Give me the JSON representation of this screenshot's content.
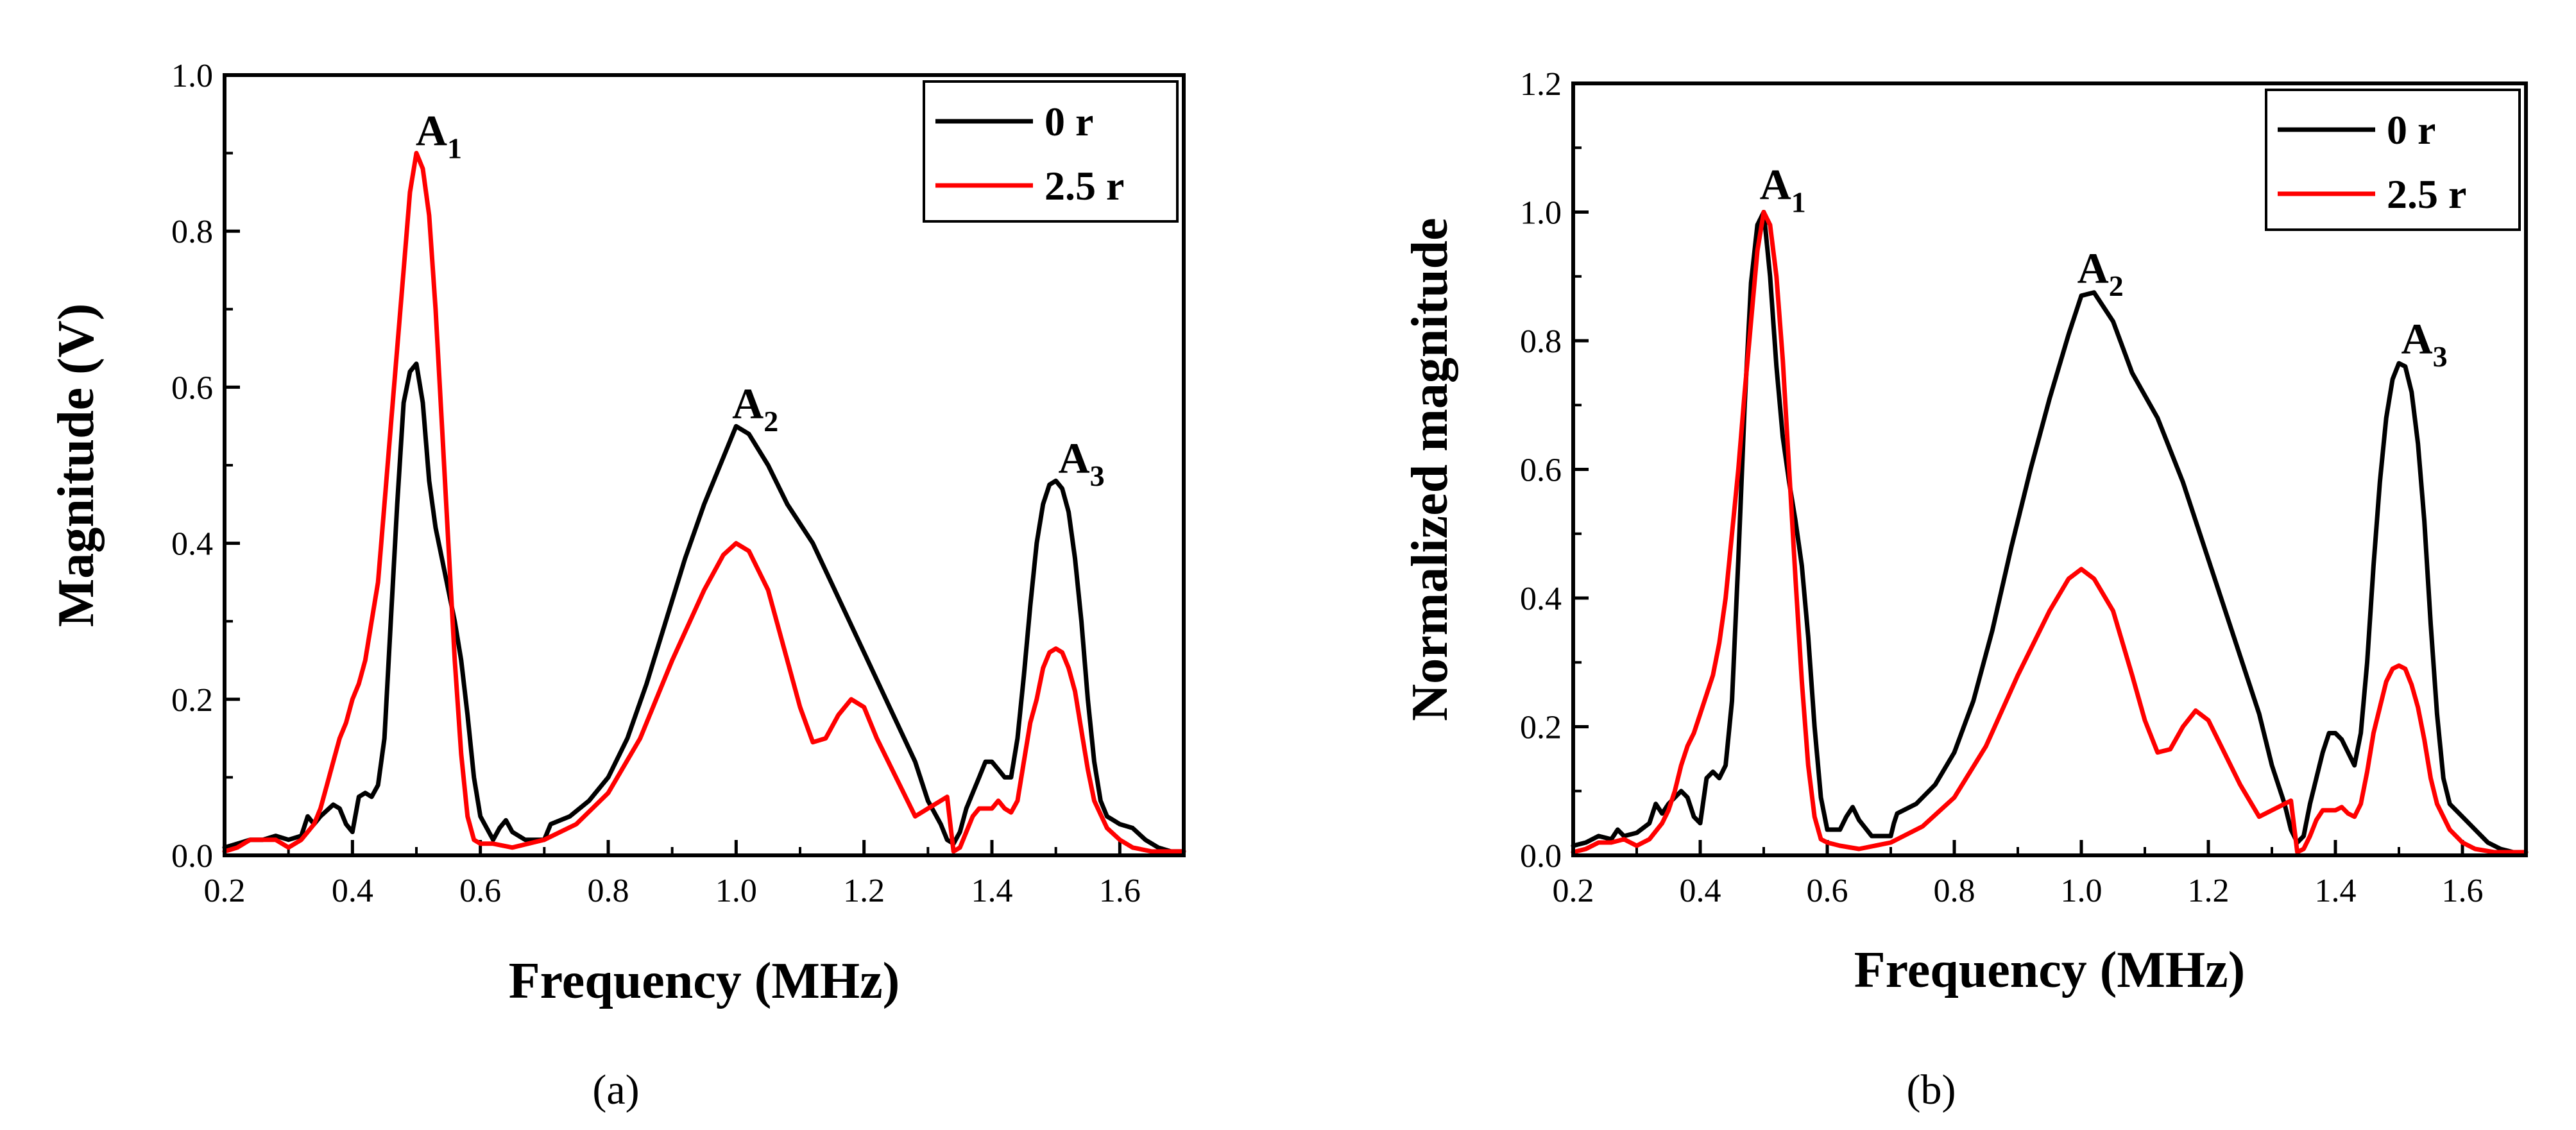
{
  "chart_data": [
    {
      "type": "line",
      "panel": "a",
      "caption": "(a)",
      "xlabel": "Frequency (MHz)",
      "ylabel": "Magnitude (V)",
      "xlim": [
        0.2,
        1.7
      ],
      "ylim": [
        0.0,
        1.0
      ],
      "xticks": [
        0.2,
        0.4,
        0.6,
        0.8,
        1.0,
        1.2,
        1.4,
        1.6
      ],
      "xtick_labels": [
        "0.2",
        "0.4",
        "0.6",
        "0.8",
        "1.0",
        "1.2",
        "1.4",
        "1.6"
      ],
      "yticks": [
        0.0,
        0.2,
        0.4,
        0.6,
        0.8,
        1.0
      ],
      "ytick_labels": [
        "0.0",
        "0.2",
        "0.4",
        "0.6",
        "0.8",
        "1.0"
      ],
      "legend": {
        "position": "top-right"
      },
      "annotations": [
        {
          "main": "A",
          "sub": "1",
          "x": 0.535,
          "y": 0.91
        },
        {
          "main": "A",
          "sub": "2",
          "x": 1.03,
          "y": 0.56
        },
        {
          "main": "A",
          "sub": "3",
          "x": 1.54,
          "y": 0.49
        }
      ],
      "series": [
        {
          "name": "0 r",
          "color": "#000000",
          "x": [
            0.2,
            0.22,
            0.24,
            0.26,
            0.28,
            0.3,
            0.32,
            0.33,
            0.34,
            0.35,
            0.37,
            0.38,
            0.39,
            0.4,
            0.41,
            0.42,
            0.43,
            0.44,
            0.45,
            0.46,
            0.47,
            0.48,
            0.49,
            0.5,
            0.51,
            0.52,
            0.53,
            0.54,
            0.55,
            0.56,
            0.57,
            0.58,
            0.59,
            0.6,
            0.62,
            0.63,
            0.64,
            0.65,
            0.67,
            0.7,
            0.705,
            0.71,
            0.74,
            0.77,
            0.8,
            0.83,
            0.86,
            0.89,
            0.92,
            0.95,
            0.98,
            1.0,
            1.02,
            1.05,
            1.08,
            1.12,
            1.16,
            1.2,
            1.24,
            1.28,
            1.3,
            1.32,
            1.33,
            1.34,
            1.35,
            1.36,
            1.37,
            1.38,
            1.39,
            1.4,
            1.41,
            1.42,
            1.43,
            1.44,
            1.45,
            1.46,
            1.47,
            1.48,
            1.49,
            1.5,
            1.51,
            1.52,
            1.53,
            1.54,
            1.55,
            1.56,
            1.57,
            1.58,
            1.59,
            1.6,
            1.62,
            1.64,
            1.66,
            1.68,
            1.7
          ],
          "values": [
            0.01,
            0.015,
            0.02,
            0.02,
            0.025,
            0.02,
            0.025,
            0.05,
            0.04,
            0.05,
            0.065,
            0.06,
            0.04,
            0.03,
            0.075,
            0.08,
            0.075,
            0.09,
            0.15,
            0.3,
            0.45,
            0.58,
            0.62,
            0.63,
            0.58,
            0.48,
            0.42,
            0.38,
            0.34,
            0.3,
            0.25,
            0.18,
            0.1,
            0.05,
            0.02,
            0.035,
            0.045,
            0.03,
            0.02,
            0.02,
            0.03,
            0.04,
            0.05,
            0.07,
            0.1,
            0.15,
            0.22,
            0.3,
            0.38,
            0.45,
            0.51,
            0.55,
            0.54,
            0.5,
            0.45,
            0.4,
            0.33,
            0.26,
            0.19,
            0.12,
            0.07,
            0.04,
            0.02,
            0.015,
            0.03,
            0.06,
            0.08,
            0.1,
            0.12,
            0.12,
            0.11,
            0.1,
            0.1,
            0.15,
            0.23,
            0.32,
            0.4,
            0.45,
            0.475,
            0.48,
            0.47,
            0.44,
            0.38,
            0.3,
            0.2,
            0.12,
            0.07,
            0.05,
            0.045,
            0.04,
            0.035,
            0.02,
            0.01,
            0.005,
            0.005
          ]
        },
        {
          "name": "2.5 r",
          "color": "#ff0000",
          "x": [
            0.2,
            0.22,
            0.24,
            0.26,
            0.28,
            0.3,
            0.32,
            0.34,
            0.35,
            0.36,
            0.37,
            0.38,
            0.39,
            0.4,
            0.41,
            0.42,
            0.43,
            0.44,
            0.45,
            0.46,
            0.47,
            0.48,
            0.49,
            0.5,
            0.51,
            0.52,
            0.53,
            0.54,
            0.55,
            0.56,
            0.57,
            0.58,
            0.59,
            0.6,
            0.62,
            0.65,
            0.7,
            0.75,
            0.8,
            0.85,
            0.9,
            0.95,
            0.98,
            1.0,
            1.02,
            1.05,
            1.08,
            1.1,
            1.12,
            1.14,
            1.16,
            1.18,
            1.2,
            1.22,
            1.25,
            1.28,
            1.3,
            1.32,
            1.33,
            1.34,
            1.35,
            1.36,
            1.37,
            1.38,
            1.39,
            1.4,
            1.41,
            1.42,
            1.43,
            1.44,
            1.45,
            1.46,
            1.47,
            1.48,
            1.49,
            1.5,
            1.51,
            1.52,
            1.53,
            1.54,
            1.55,
            1.56,
            1.58,
            1.6,
            1.62,
            1.65,
            1.7
          ],
          "values": [
            0.005,
            0.01,
            0.02,
            0.02,
            0.02,
            0.01,
            0.02,
            0.04,
            0.06,
            0.09,
            0.12,
            0.15,
            0.17,
            0.2,
            0.22,
            0.25,
            0.3,
            0.35,
            0.45,
            0.55,
            0.65,
            0.75,
            0.85,
            0.9,
            0.88,
            0.82,
            0.7,
            0.55,
            0.4,
            0.25,
            0.13,
            0.05,
            0.02,
            0.015,
            0.015,
            0.01,
            0.02,
            0.04,
            0.08,
            0.15,
            0.25,
            0.34,
            0.385,
            0.4,
            0.39,
            0.34,
            0.25,
            0.19,
            0.145,
            0.15,
            0.18,
            0.2,
            0.19,
            0.15,
            0.1,
            0.05,
            0.06,
            0.07,
            0.075,
            0.005,
            0.01,
            0.03,
            0.05,
            0.06,
            0.06,
            0.06,
            0.07,
            0.06,
            0.055,
            0.07,
            0.12,
            0.17,
            0.2,
            0.24,
            0.26,
            0.265,
            0.26,
            0.24,
            0.21,
            0.16,
            0.11,
            0.07,
            0.035,
            0.02,
            0.01,
            0.005,
            0.005
          ]
        }
      ]
    },
    {
      "type": "line",
      "panel": "b",
      "caption": "(b)",
      "xlabel": "Frequency (MHz)",
      "ylabel": "Normalized magnitude",
      "xlim": [
        0.2,
        1.7
      ],
      "ylim": [
        0.0,
        1.2
      ],
      "xticks": [
        0.2,
        0.4,
        0.6,
        0.8,
        1.0,
        1.2,
        1.4,
        1.6
      ],
      "xtick_labels": [
        "0.2",
        "0.4",
        "0.6",
        "0.8",
        "1.0",
        "1.2",
        "1.4",
        "1.6"
      ],
      "yticks": [
        0.0,
        0.2,
        0.4,
        0.6,
        0.8,
        1.0,
        1.2
      ],
      "ytick_labels": [
        "0.0",
        "0.2",
        "0.4",
        "0.6",
        "0.8",
        "1.0",
        "1.2"
      ],
      "legend": {
        "position": "top-right"
      },
      "annotations": [
        {
          "main": "A",
          "sub": "1",
          "x": 0.53,
          "y": 1.02
        },
        {
          "main": "A",
          "sub": "2",
          "x": 1.03,
          "y": 0.89
        },
        {
          "main": "A",
          "sub": "3",
          "x": 1.54,
          "y": 0.78
        }
      ],
      "series": [
        {
          "name": "0 r",
          "color": "#000000",
          "x": [
            0.2,
            0.22,
            0.24,
            0.26,
            0.27,
            0.28,
            0.3,
            0.32,
            0.33,
            0.34,
            0.35,
            0.37,
            0.38,
            0.39,
            0.4,
            0.41,
            0.42,
            0.43,
            0.44,
            0.45,
            0.46,
            0.47,
            0.48,
            0.49,
            0.5,
            0.51,
            0.52,
            0.53,
            0.54,
            0.55,
            0.56,
            0.57,
            0.58,
            0.59,
            0.6,
            0.62,
            0.63,
            0.64,
            0.65,
            0.67,
            0.7,
            0.705,
            0.71,
            0.74,
            0.77,
            0.8,
            0.83,
            0.86,
            0.89,
            0.92,
            0.95,
            0.98,
            1.0,
            1.02,
            1.05,
            1.08,
            1.12,
            1.16,
            1.2,
            1.24,
            1.28,
            1.3,
            1.32,
            1.33,
            1.34,
            1.35,
            1.36,
            1.37,
            1.38,
            1.39,
            1.4,
            1.41,
            1.42,
            1.43,
            1.44,
            1.45,
            1.46,
            1.47,
            1.48,
            1.49,
            1.5,
            1.51,
            1.52,
            1.53,
            1.54,
            1.55,
            1.56,
            1.57,
            1.58,
            1.59,
            1.6,
            1.62,
            1.64,
            1.66,
            1.68,
            1.7
          ],
          "values": [
            0.015,
            0.02,
            0.03,
            0.025,
            0.04,
            0.03,
            0.035,
            0.05,
            0.08,
            0.065,
            0.08,
            0.1,
            0.09,
            0.06,
            0.05,
            0.12,
            0.13,
            0.12,
            0.14,
            0.24,
            0.46,
            0.7,
            0.89,
            0.98,
            1.0,
            0.9,
            0.76,
            0.65,
            0.58,
            0.52,
            0.45,
            0.34,
            0.2,
            0.09,
            0.04,
            0.04,
            0.06,
            0.075,
            0.055,
            0.03,
            0.03,
            0.05,
            0.065,
            0.08,
            0.11,
            0.16,
            0.24,
            0.35,
            0.48,
            0.6,
            0.71,
            0.81,
            0.87,
            0.875,
            0.83,
            0.75,
            0.68,
            0.58,
            0.46,
            0.34,
            0.22,
            0.14,
            0.08,
            0.04,
            0.02,
            0.03,
            0.08,
            0.12,
            0.16,
            0.19,
            0.19,
            0.18,
            0.16,
            0.14,
            0.19,
            0.3,
            0.45,
            0.58,
            0.68,
            0.74,
            0.765,
            0.76,
            0.72,
            0.64,
            0.52,
            0.36,
            0.22,
            0.12,
            0.08,
            0.07,
            0.06,
            0.04,
            0.02,
            0.01,
            0.005,
            0.005
          ]
        },
        {
          "name": "2.5 r",
          "color": "#ff0000",
          "x": [
            0.2,
            0.22,
            0.24,
            0.26,
            0.28,
            0.3,
            0.32,
            0.34,
            0.35,
            0.36,
            0.37,
            0.38,
            0.39,
            0.4,
            0.41,
            0.42,
            0.43,
            0.44,
            0.45,
            0.46,
            0.47,
            0.48,
            0.49,
            0.5,
            0.51,
            0.52,
            0.53,
            0.54,
            0.55,
            0.56,
            0.57,
            0.58,
            0.59,
            0.6,
            0.62,
            0.65,
            0.7,
            0.75,
            0.8,
            0.85,
            0.9,
            0.95,
            0.98,
            1.0,
            1.02,
            1.05,
            1.08,
            1.1,
            1.12,
            1.14,
            1.16,
            1.18,
            1.2,
            1.22,
            1.25,
            1.28,
            1.3,
            1.32,
            1.33,
            1.34,
            1.35,
            1.36,
            1.37,
            1.38,
            1.39,
            1.4,
            1.41,
            1.42,
            1.43,
            1.44,
            1.45,
            1.46,
            1.47,
            1.48,
            1.49,
            1.5,
            1.51,
            1.52,
            1.53,
            1.54,
            1.55,
            1.56,
            1.58,
            1.6,
            1.62,
            1.65,
            1.7
          ],
          "values": [
            0.005,
            0.01,
            0.02,
            0.02,
            0.025,
            0.015,
            0.025,
            0.05,
            0.07,
            0.1,
            0.14,
            0.17,
            0.19,
            0.22,
            0.25,
            0.28,
            0.33,
            0.4,
            0.5,
            0.6,
            0.72,
            0.83,
            0.94,
            1.0,
            0.98,
            0.9,
            0.77,
            0.6,
            0.43,
            0.27,
            0.14,
            0.06,
            0.025,
            0.02,
            0.015,
            0.01,
            0.02,
            0.045,
            0.09,
            0.17,
            0.28,
            0.38,
            0.43,
            0.445,
            0.43,
            0.38,
            0.28,
            0.21,
            0.16,
            0.165,
            0.2,
            0.225,
            0.21,
            0.17,
            0.11,
            0.06,
            0.07,
            0.08,
            0.085,
            0.005,
            0.01,
            0.03,
            0.055,
            0.07,
            0.07,
            0.07,
            0.075,
            0.065,
            0.06,
            0.08,
            0.13,
            0.19,
            0.23,
            0.27,
            0.29,
            0.295,
            0.29,
            0.265,
            0.23,
            0.18,
            0.12,
            0.08,
            0.04,
            0.02,
            0.01,
            0.005,
            0.005
          ]
        }
      ]
    }
  ]
}
